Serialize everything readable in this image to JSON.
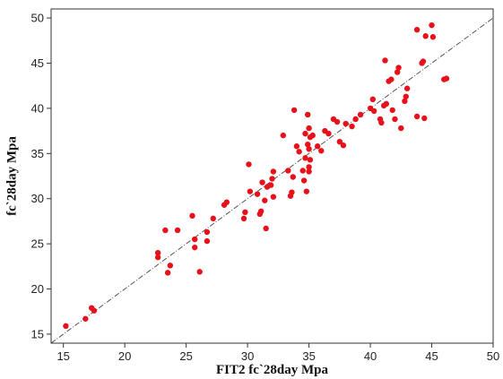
{
  "chart_data": {
    "type": "scatter",
    "xlabel": "FIT2 fc`28day Mpa",
    "ylabel": "fc`28day Mpa",
    "xlim": [
      14,
      50
    ],
    "ylim": [
      14,
      51
    ],
    "x_ticks": [
      15,
      20,
      25,
      30,
      35,
      40,
      45,
      50
    ],
    "y_ticks": [
      15,
      20,
      25,
      30,
      35,
      40,
      45,
      50
    ],
    "grid": false,
    "reference_line": {
      "style": "dashed",
      "from": [
        14,
        14
      ],
      "to": [
        50,
        50
      ]
    },
    "point_color": "#e8101a",
    "series": [
      {
        "points": [
          [
            15.2,
            15.9
          ],
          [
            16.8,
            16.7
          ],
          [
            17.3,
            17.9
          ],
          [
            17.5,
            17.6
          ],
          [
            22.7,
            23.5
          ],
          [
            22.7,
            24.0
          ],
          [
            23.3,
            26.5
          ],
          [
            23.5,
            21.8
          ],
          [
            23.7,
            22.6
          ],
          [
            24.3,
            26.5
          ],
          [
            25.5,
            28.1
          ],
          [
            25.7,
            24.6
          ],
          [
            25.7,
            25.5
          ],
          [
            26.1,
            21.9
          ],
          [
            26.7,
            25.3
          ],
          [
            26.7,
            26.3
          ],
          [
            27.2,
            27.8
          ],
          [
            28.1,
            29.3
          ],
          [
            28.3,
            29.6
          ],
          [
            29.7,
            27.8
          ],
          [
            29.8,
            28.5
          ],
          [
            30.1,
            33.8
          ],
          [
            30.2,
            30.8
          ],
          [
            30.8,
            30.5
          ],
          [
            31.0,
            28.3
          ],
          [
            31.1,
            28.6
          ],
          [
            31.2,
            31.8
          ],
          [
            31.4,
            29.8
          ],
          [
            31.5,
            26.7
          ],
          [
            31.6,
            31.3
          ],
          [
            31.9,
            31.5
          ],
          [
            32.0,
            32.2
          ],
          [
            32.1,
            30.2
          ],
          [
            32.1,
            33.0
          ],
          [
            32.9,
            37.0
          ],
          [
            33.3,
            33.1
          ],
          [
            33.5,
            30.3
          ],
          [
            33.6,
            30.7
          ],
          [
            33.7,
            32.4
          ],
          [
            33.8,
            39.8
          ],
          [
            34.0,
            35.8
          ],
          [
            34.2,
            35.2
          ],
          [
            34.5,
            33.1
          ],
          [
            34.6,
            32.0
          ],
          [
            34.7,
            34.5
          ],
          [
            34.7,
            37.2
          ],
          [
            34.8,
            30.8
          ],
          [
            34.9,
            36.0
          ],
          [
            35.0,
            33.0
          ],
          [
            35.0,
            33.5
          ],
          [
            35.0,
            35.5
          ],
          [
            35.0,
            37.8
          ],
          [
            35.1,
            34.3
          ],
          [
            35.1,
            36.8
          ],
          [
            35.3,
            37.0
          ],
          [
            34.9,
            39.3
          ],
          [
            35.7,
            35.8
          ],
          [
            36.0,
            35.3
          ],
          [
            36.3,
            37.5
          ],
          [
            36.6,
            37.2
          ],
          [
            37.0,
            38.8
          ],
          [
            37.3,
            38.5
          ],
          [
            37.5,
            36.3
          ],
          [
            37.8,
            35.9
          ],
          [
            38.0,
            38.3
          ],
          [
            38.5,
            38.0
          ],
          [
            38.8,
            38.8
          ],
          [
            39.2,
            39.3
          ],
          [
            40.0,
            40.0
          ],
          [
            40.2,
            41.0
          ],
          [
            40.3,
            39.7
          ],
          [
            40.8,
            38.8
          ],
          [
            40.9,
            38.4
          ],
          [
            41.1,
            40.3
          ],
          [
            41.2,
            45.3
          ],
          [
            41.3,
            40.5
          ],
          [
            41.5,
            43.0
          ],
          [
            41.7,
            43.2
          ],
          [
            41.8,
            39.8
          ],
          [
            42.0,
            38.8
          ],
          [
            42.2,
            44.0
          ],
          [
            42.3,
            44.5
          ],
          [
            42.5,
            37.8
          ],
          [
            42.8,
            40.8
          ],
          [
            42.9,
            41.3
          ],
          [
            43.0,
            42.2
          ],
          [
            43.8,
            48.7
          ],
          [
            43.8,
            39.1
          ],
          [
            44.2,
            45.0
          ],
          [
            44.3,
            45.2
          ],
          [
            44.4,
            38.9
          ],
          [
            44.5,
            48.0
          ],
          [
            45.0,
            49.2
          ],
          [
            45.1,
            47.9
          ],
          [
            46.0,
            43.2
          ],
          [
            46.2,
            43.3
          ]
        ]
      }
    ]
  }
}
